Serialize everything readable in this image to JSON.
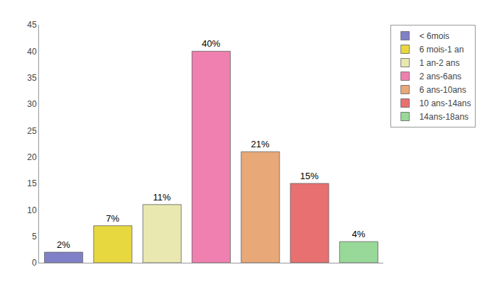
{
  "chart_data": {
    "type": "bar",
    "categories": [
      "< 6mois",
      "6 mois-1 an",
      "1 an-2 ans",
      "2 ans-6ans",
      "6 ans-10ans",
      "10 ans-14ans",
      "14ans-18ans"
    ],
    "values": [
      2,
      7,
      11,
      40,
      21,
      15,
      4
    ],
    "value_labels": [
      "2%",
      "7%",
      "11%",
      "40%",
      "21%",
      "15%",
      "4%"
    ],
    "colors": [
      "#8080c8",
      "#e8d840",
      "#e8e8b0",
      "#f080b0",
      "#e8a878",
      "#e87070",
      "#98d898"
    ],
    "ylim": [
      0,
      45
    ],
    "yticks": [
      0,
      5,
      10,
      15,
      20,
      25,
      30,
      35,
      40,
      45
    ],
    "grid": false,
    "data_labels": true,
    "tick_labels": "y",
    "legend": "upper right"
  }
}
